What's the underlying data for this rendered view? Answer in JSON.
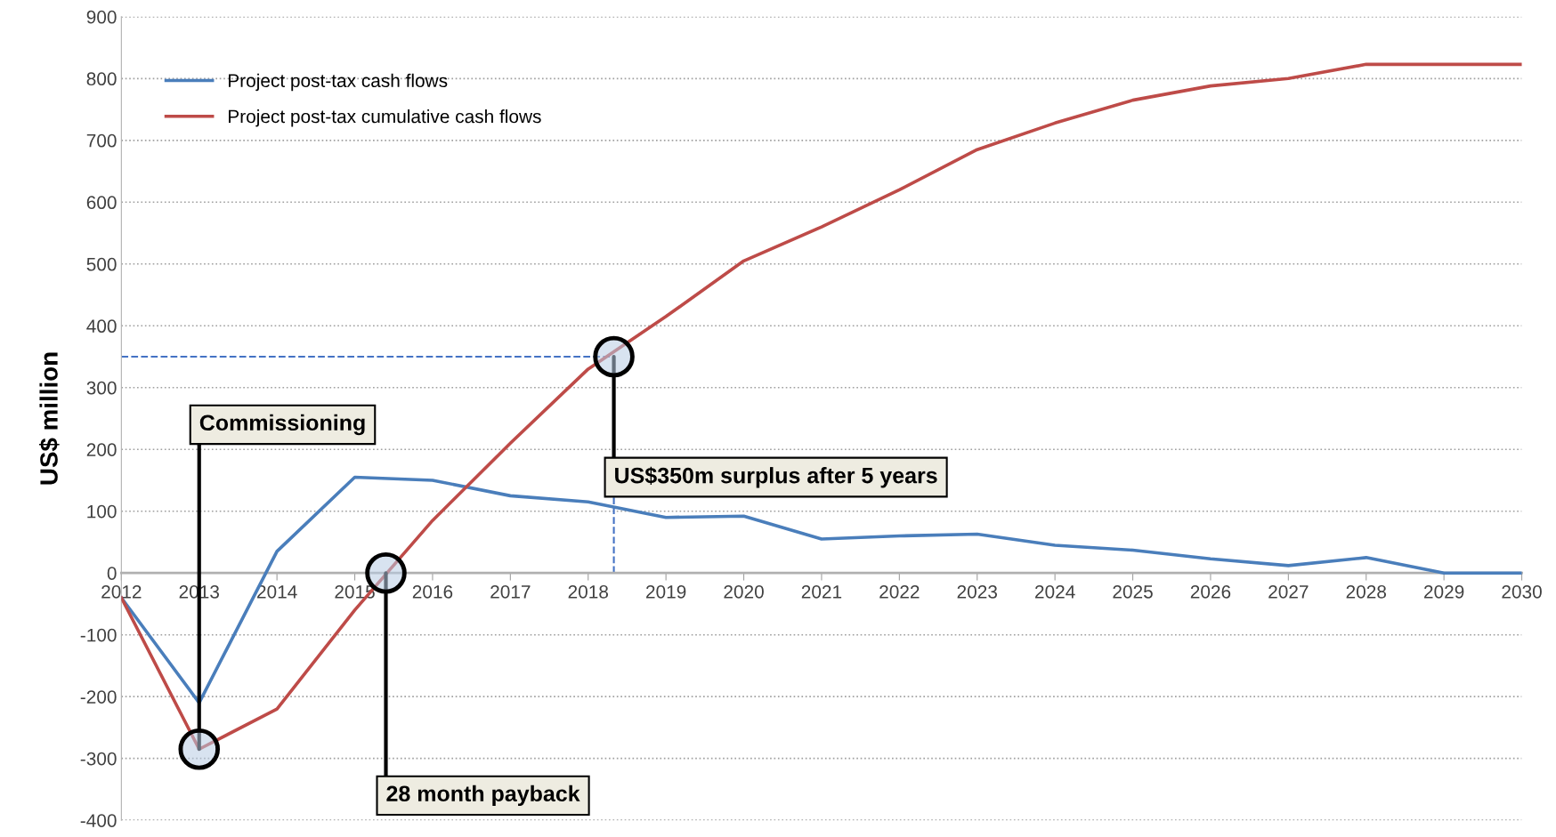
{
  "chart_data": {
    "type": "line",
    "ylabel": "US$ million",
    "x": [
      2012,
      2013,
      2014,
      2015,
      2016,
      2017,
      2018,
      2019,
      2020,
      2021,
      2022,
      2023,
      2024,
      2025,
      2026,
      2027,
      2028,
      2029,
      2030
    ],
    "series": [
      {
        "name": "Project post-tax cash flows",
        "color": "#4a7ebb",
        "values": [
          -40,
          -210,
          35,
          155,
          150,
          125,
          115,
          90,
          92,
          55,
          60,
          63,
          45,
          37,
          23,
          12,
          25,
          0,
          0
        ]
      },
      {
        "name": "Project post-tax cumulative cash flows",
        "color": "#be4b48",
        "values": [
          -40,
          -285,
          -220,
          -60,
          85,
          210,
          330,
          415,
          505,
          560,
          620,
          685,
          728,
          765,
          788,
          800,
          823,
          823,
          823
        ]
      },
      {
        "type": "scatter",
        "marker": "circle",
        "color": "#b8cce4",
        "x": [
          2013,
          2015.4,
          2018.33
        ],
        "values": [
          -285,
          0,
          350
        ]
      }
    ],
    "xlim": [
      2012,
      2030
    ],
    "xticks": [
      2012,
      2013,
      2014,
      2015,
      2016,
      2017,
      2018,
      2019,
      2020,
      2021,
      2022,
      2023,
      2024,
      2025,
      2026,
      2027,
      2028,
      2029,
      2030
    ],
    "ylim": [
      -400,
      900
    ],
    "yticks": [
      -400,
      -300,
      -200,
      -100,
      0,
      100,
      200,
      300,
      400,
      500,
      600,
      700,
      800,
      900
    ],
    "grid": "y",
    "legend": "top left",
    "marker": "none",
    "line_style": "solid",
    "ref_lines": [
      {
        "axis": "y",
        "value": 350,
        "color": "#4472c4",
        "line_style": "dashed"
      },
      {
        "axis": "x",
        "value": 2018.33,
        "color": "#4472c4",
        "line_style": "dashed"
      }
    ],
    "annotations": [
      {
        "text": "Commissioning",
        "x": 2013,
        "y": -285
      },
      {
        "text": "28 month payback",
        "x": 2015.4,
        "y": 0
      },
      {
        "text": "US$350m surplus after 5 years",
        "x": 2018.33,
        "y": 350
      }
    ]
  }
}
